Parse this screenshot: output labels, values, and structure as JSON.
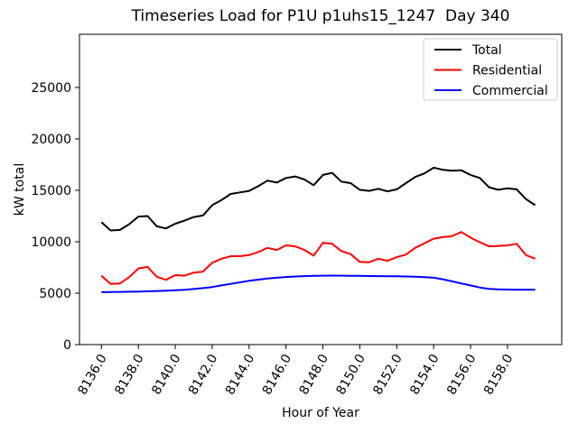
{
  "title": "Timeseries Load for P1U p1uhs15_1247  Day 340",
  "chart_data": {
    "type": "line",
    "title": "Timeseries Load for P1U p1uhs15_1247  Day 340",
    "xlabel": "Hour of Year",
    "ylabel": "kW total",
    "grid": false,
    "legend_position": "upper right",
    "xlim": [
      8134.81,
      8160.94
    ],
    "ylim": [
      0,
      30175
    ],
    "xticks": [
      8136,
      8138,
      8140,
      8142,
      8144,
      8146,
      8148,
      8150,
      8152,
      8154,
      8156,
      8158
    ],
    "xtick_labels": [
      "8136.0",
      "8138.0",
      "8140.0",
      "8142.0",
      "8144.0",
      "8146.0",
      "8148.0",
      "8150.0",
      "8152.0",
      "8154.0",
      "8156.0",
      "8158.0"
    ],
    "xtick_rotation_deg": 60,
    "yticks": [
      0,
      5000,
      10000,
      15000,
      20000,
      25000
    ],
    "ytick_labels": [
      "0",
      "5000",
      "10000",
      "15000",
      "20000",
      "25000"
    ],
    "x": [
      8136.0,
      8136.5,
      8137.0,
      8137.5,
      8138.0,
      8138.5,
      8139.0,
      8139.5,
      8140.0,
      8140.5,
      8141.0,
      8141.5,
      8142.0,
      8142.5,
      8143.0,
      8143.5,
      8144.0,
      8144.5,
      8145.0,
      8145.5,
      8146.0,
      8146.5,
      8147.0,
      8147.5,
      8148.0,
      8148.5,
      8149.0,
      8149.5,
      8150.0,
      8150.5,
      8151.0,
      8151.5,
      8152.0,
      8152.5,
      8153.0,
      8153.5,
      8154.0,
      8154.5,
      8155.0,
      8155.5,
      8156.0,
      8156.5,
      8157.0,
      8157.5,
      8158.0,
      8158.5,
      8159.0,
      8159.5
    ],
    "series": [
      {
        "name": "Total",
        "color": "#000000",
        "values": [
          11900,
          11100,
          11150,
          11700,
          12450,
          12500,
          11500,
          11300,
          11750,
          12050,
          12400,
          12550,
          13550,
          14050,
          14650,
          14800,
          14950,
          15400,
          15950,
          15750,
          16200,
          16350,
          16050,
          15500,
          16500,
          16700,
          15850,
          15700,
          15050,
          14950,
          15150,
          14900,
          15100,
          15700,
          16300,
          16650,
          17200,
          17000,
          16900,
          16950,
          16500,
          16200,
          15300,
          15050,
          15200,
          15100,
          14150,
          13550
        ]
      },
      {
        "name": "Residential",
        "color": "#ff0000",
        "values": [
          6700,
          5900,
          5950,
          6550,
          7400,
          7550,
          6600,
          6300,
          6750,
          6700,
          7000,
          7100,
          7950,
          8350,
          8600,
          8600,
          8700,
          9000,
          9400,
          9200,
          9650,
          9550,
          9200,
          8650,
          9900,
          9800,
          9100,
          8800,
          8050,
          8000,
          8350,
          8150,
          8500,
          8750,
          9400,
          9850,
          10300,
          10450,
          10550,
          10950,
          10400,
          9950,
          9550,
          9600,
          9650,
          9800,
          8700,
          8350
        ]
      },
      {
        "name": "Commercial",
        "color": "#0000ff",
        "values": [
          5100,
          5110,
          5120,
          5140,
          5160,
          5180,
          5210,
          5240,
          5280,
          5330,
          5400,
          5490,
          5600,
          5750,
          5900,
          6050,
          6200,
          6320,
          6420,
          6500,
          6570,
          6620,
          6660,
          6690,
          6700,
          6710,
          6700,
          6690,
          6680,
          6670,
          6660,
          6650,
          6640,
          6620,
          6600,
          6560,
          6500,
          6350,
          6150,
          5950,
          5750,
          5550,
          5420,
          5370,
          5350,
          5340,
          5340,
          5340
        ]
      }
    ],
    "style": {
      "line_width": 2,
      "spine_color": "#000000",
      "legend_border_color": "#cccccc",
      "legend_bg_color": "#ffffff"
    }
  }
}
